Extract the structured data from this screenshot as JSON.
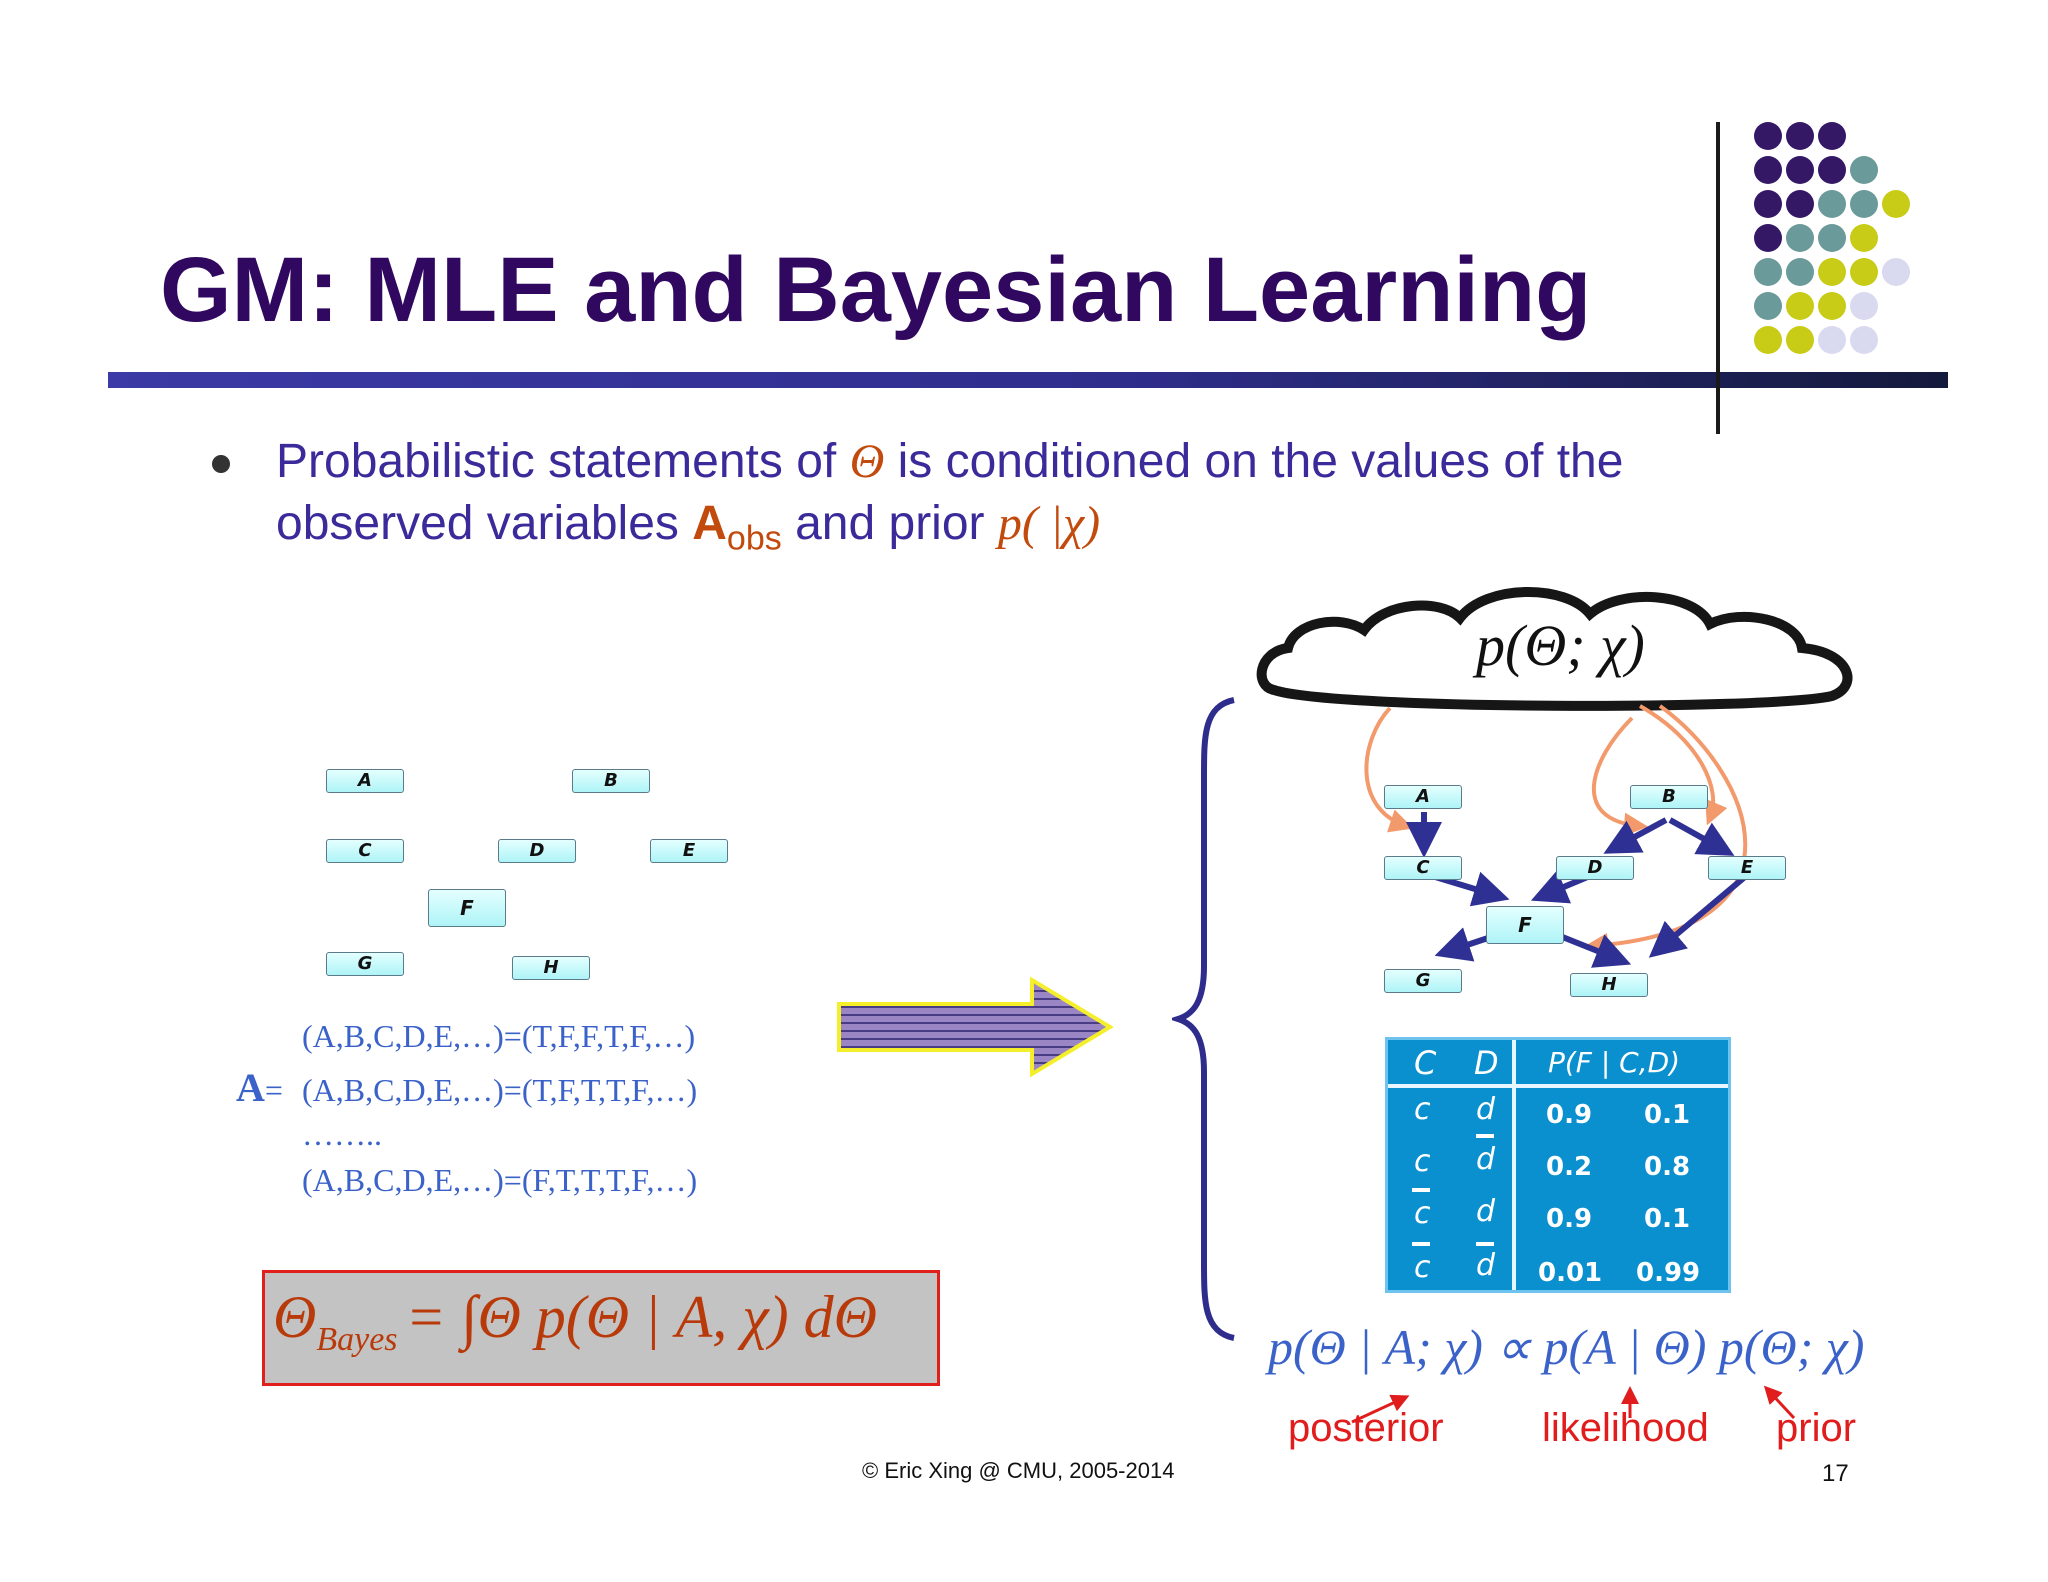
{
  "slide": {
    "title": "GM: MLE and Bayesian Learning",
    "bullet": {
      "line1_pre": "Probabilistic statements of ",
      "theta": "Θ",
      "line1_post": " is conditioned on the values of the",
      "line2_pre": "observed variables ",
      "A": "A",
      "obs": "obs",
      "line2_mid": " and prior ",
      "prior": "p( |χ)"
    },
    "left_graph_nodes": [
      "A",
      "B",
      "C",
      "D",
      "E",
      "F",
      "G",
      "H"
    ],
    "data_rows": {
      "A_label": "A",
      "equals": "=",
      "row1": "(A,B,C,D,E,…)=(T,F,F,T,F,…)",
      "row2": "(A,B,C,D,E,…)=(T,F,T,T,F,…)",
      "ellipsis": "……..",
      "row3": "(A,B,C,D,E,…)=(F,T,T,T,F,…)"
    },
    "formula": {
      "theta_bayes": "Θ",
      "bayes_sub": "Bayes",
      "rhs": "= ∫Θ p(Θ | A, χ) dΘ"
    },
    "cloud_label": "p(Θ; χ)",
    "right_graph_nodes": [
      "A",
      "B",
      "C",
      "D",
      "E",
      "F",
      "G",
      "H"
    ],
    "cpt": {
      "headers": [
        "C",
        "D",
        "P(F | C,D)"
      ],
      "rows": [
        {
          "c": "c",
          "d": "d",
          "p1": "0.9",
          "p2": "0.1"
        },
        {
          "c": "c",
          "d": "d",
          "p1": "0.2",
          "p2": "0.8"
        },
        {
          "c": "c",
          "d": "d",
          "p1": "0.9",
          "p2": "0.1"
        },
        {
          "c": "c",
          "d": "d",
          "p1": "0.01",
          "p2": "0.99"
        }
      ]
    },
    "bayes_rule": "p(Θ | A; χ) ∝ p(A | Θ) p(Θ; χ)",
    "labels": {
      "posterior": "posterior",
      "likelihood": "likelihood",
      "prior": "prior"
    },
    "footer": "© Eric Xing @ CMU, 2005-2014",
    "page_number": "17",
    "colors": {
      "title": "#30085f",
      "accent_orange": "#c24a0c",
      "blue_text": "#3a62c8",
      "purple": "#3a2a9a",
      "table_bg": "#0a8fcf",
      "red": "#e11c1c"
    }
  }
}
